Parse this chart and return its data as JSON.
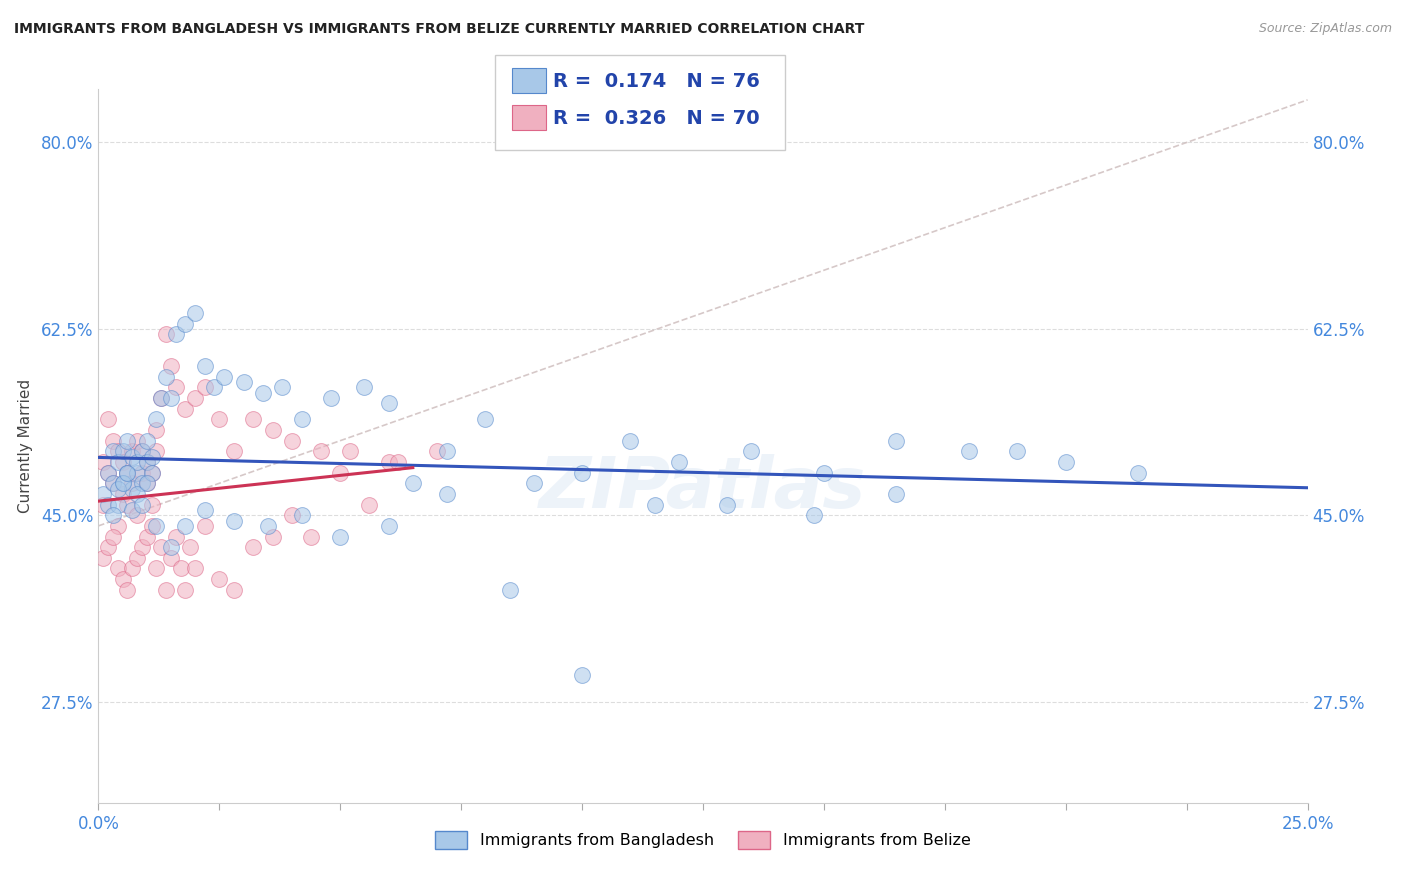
{
  "title": "IMMIGRANTS FROM BANGLADESH VS IMMIGRANTS FROM BELIZE CURRENTLY MARRIED CORRELATION CHART",
  "source": "Source: ZipAtlas.com",
  "ylabel": "Currently Married",
  "legend_label1": "Immigrants from Bangladesh",
  "legend_label2": "Immigrants from Belize",
  "R1": "0.174",
  "N1": "76",
  "R2": "0.326",
  "N2": "70",
  "color1": "#a8c8e8",
  "color2": "#f0b0c0",
  "edge_color1": "#5588cc",
  "edge_color2": "#dd6688",
  "trend_color1": "#3355bb",
  "trend_color2": "#cc3355",
  "ref_line_color": "#ccbbbb",
  "grid_color": "#dddddd",
  "xlim": [
    0.0,
    0.25
  ],
  "ylim": [
    0.18,
    0.85
  ],
  "xtick_vals": [
    0.0,
    0.025,
    0.05,
    0.075,
    0.1,
    0.125,
    0.15,
    0.175,
    0.2,
    0.225,
    0.25
  ],
  "ytick_vals": [
    0.275,
    0.45,
    0.625,
    0.8
  ],
  "bangladesh_x": [
    0.001,
    0.002,
    0.002,
    0.003,
    0.003,
    0.004,
    0.004,
    0.005,
    0.005,
    0.006,
    0.006,
    0.007,
    0.007,
    0.008,
    0.008,
    0.009,
    0.009,
    0.01,
    0.01,
    0.011,
    0.011,
    0.012,
    0.013,
    0.014,
    0.015,
    0.016,
    0.018,
    0.02,
    0.022,
    0.024,
    0.026,
    0.03,
    0.034,
    0.038,
    0.042,
    0.048,
    0.055,
    0.06,
    0.065,
    0.072,
    0.08,
    0.09,
    0.1,
    0.11,
    0.12,
    0.135,
    0.15,
    0.165,
    0.18,
    0.2,
    0.003,
    0.004,
    0.005,
    0.006,
    0.007,
    0.008,
    0.009,
    0.01,
    0.012,
    0.015,
    0.018,
    0.022,
    0.028,
    0.035,
    0.042,
    0.05,
    0.06,
    0.072,
    0.085,
    0.1,
    0.115,
    0.13,
    0.148,
    0.165,
    0.19,
    0.215
  ],
  "bangladesh_y": [
    0.47,
    0.46,
    0.49,
    0.51,
    0.48,
    0.5,
    0.46,
    0.51,
    0.48,
    0.49,
    0.52,
    0.475,
    0.505,
    0.49,
    0.5,
    0.48,
    0.51,
    0.5,
    0.52,
    0.49,
    0.505,
    0.54,
    0.56,
    0.58,
    0.56,
    0.62,
    0.63,
    0.64,
    0.59,
    0.57,
    0.58,
    0.575,
    0.565,
    0.57,
    0.54,
    0.56,
    0.57,
    0.555,
    0.48,
    0.51,
    0.54,
    0.48,
    0.49,
    0.52,
    0.5,
    0.51,
    0.49,
    0.52,
    0.51,
    0.5,
    0.45,
    0.475,
    0.48,
    0.49,
    0.455,
    0.47,
    0.46,
    0.48,
    0.44,
    0.42,
    0.44,
    0.455,
    0.445,
    0.44,
    0.45,
    0.43,
    0.44,
    0.47,
    0.38,
    0.3,
    0.46,
    0.46,
    0.45,
    0.47,
    0.51,
    0.49
  ],
  "belize_x": [
    0.001,
    0.001,
    0.002,
    0.002,
    0.003,
    0.003,
    0.004,
    0.004,
    0.005,
    0.005,
    0.006,
    0.006,
    0.007,
    0.007,
    0.008,
    0.008,
    0.009,
    0.009,
    0.01,
    0.01,
    0.011,
    0.011,
    0.012,
    0.012,
    0.013,
    0.014,
    0.015,
    0.016,
    0.018,
    0.02,
    0.022,
    0.025,
    0.028,
    0.032,
    0.036,
    0.04,
    0.046,
    0.052,
    0.06,
    0.07,
    0.001,
    0.002,
    0.003,
    0.004,
    0.005,
    0.006,
    0.007,
    0.008,
    0.009,
    0.01,
    0.011,
    0.012,
    0.013,
    0.014,
    0.015,
    0.016,
    0.017,
    0.018,
    0.019,
    0.02,
    0.022,
    0.025,
    0.028,
    0.032,
    0.036,
    0.04,
    0.044,
    0.05,
    0.056,
    0.062
  ],
  "belize_y": [
    0.46,
    0.5,
    0.49,
    0.54,
    0.52,
    0.48,
    0.51,
    0.44,
    0.5,
    0.47,
    0.49,
    0.46,
    0.51,
    0.48,
    0.52,
    0.45,
    0.49,
    0.51,
    0.48,
    0.5,
    0.46,
    0.49,
    0.51,
    0.53,
    0.56,
    0.62,
    0.59,
    0.57,
    0.55,
    0.56,
    0.57,
    0.54,
    0.51,
    0.54,
    0.53,
    0.52,
    0.51,
    0.51,
    0.5,
    0.51,
    0.41,
    0.42,
    0.43,
    0.4,
    0.39,
    0.38,
    0.4,
    0.41,
    0.42,
    0.43,
    0.44,
    0.4,
    0.42,
    0.38,
    0.41,
    0.43,
    0.4,
    0.38,
    0.42,
    0.4,
    0.44,
    0.39,
    0.38,
    0.42,
    0.43,
    0.45,
    0.43,
    0.49,
    0.46,
    0.5
  ],
  "watermark": "ZIPatlas"
}
